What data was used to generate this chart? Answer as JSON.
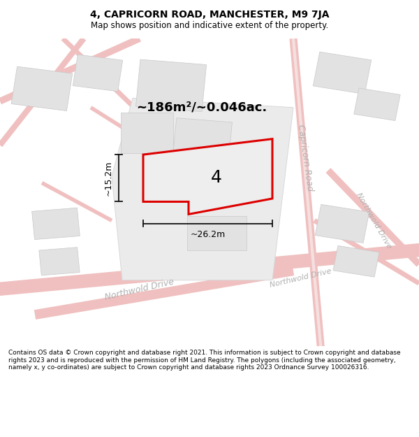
{
  "title": "4, CAPRICORN ROAD, MANCHESTER, M9 7JA",
  "subtitle": "Map shows position and indicative extent of the property.",
  "footer": "Contains OS data © Crown copyright and database right 2021. This information is subject to Crown copyright and database rights 2023 and is reproduced with the permission of HM Land Registry. The polygons (including the associated geometry, namely x, y co-ordinates) are subject to Crown copyright and database rights 2023 Ordnance Survey 100026316.",
  "area_label": "~186m²/~0.046ac.",
  "width_label": "~26.2m",
  "height_label": "~15.2m",
  "plot_number": "4",
  "map_bg": "#f7f7f7",
  "road_color": "#f0c0c0",
  "road_outline_color": "#e8a0a8",
  "building_fill": "#e2e2e2",
  "building_edge": "#c8c8c8",
  "block_fill": "#ebebeb",
  "block_edge": "#d8d8d8",
  "plot_outline_color": "#dd0000",
  "plot_fill": "#eeeeee",
  "dim_line_color": "#111111",
  "road_label_color": "#b0b0b0",
  "title_fontsize": 10,
  "subtitle_fontsize": 8.5,
  "footer_fontsize": 6.5,
  "area_fontsize": 13,
  "plot_num_fontsize": 18,
  "dim_fontsize": 9,
  "road_label_fontsize": 9
}
